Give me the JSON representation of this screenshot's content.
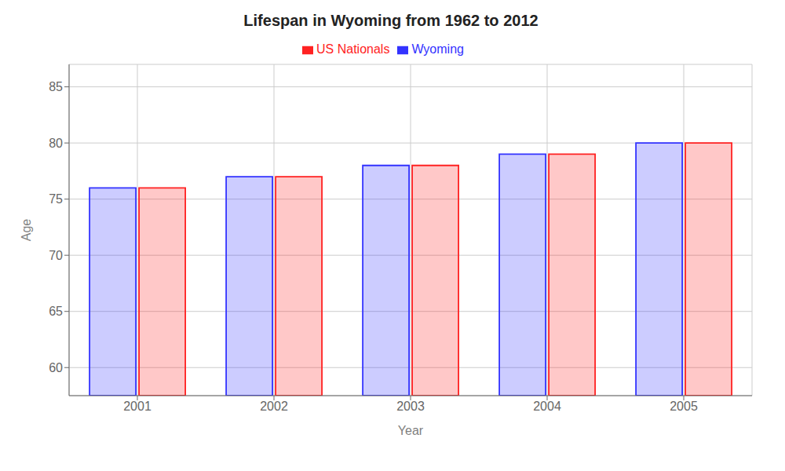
{
  "chart_data": {
    "type": "bar",
    "title": "Lifespan in Wyoming from 1962 to 2012",
    "x_label": "Year",
    "y_label": "Age",
    "categories": [
      "2001",
      "2002",
      "2003",
      "2004",
      "2005"
    ],
    "series": [
      {
        "name": "Wyoming",
        "color": "#3333ff",
        "values": [
          76.0,
          77.0,
          78.0,
          79.0,
          80.0
        ]
      },
      {
        "name": "US Nationals",
        "color": "#ff2222",
        "values": [
          76.0,
          77.0,
          78.0,
          79.0,
          80.0
        ]
      }
    ],
    "ylim": [
      57.5,
      87
    ],
    "yticks": [
      60,
      65,
      70,
      75,
      80,
      85
    ],
    "grid": true,
    "legend": "top"
  }
}
